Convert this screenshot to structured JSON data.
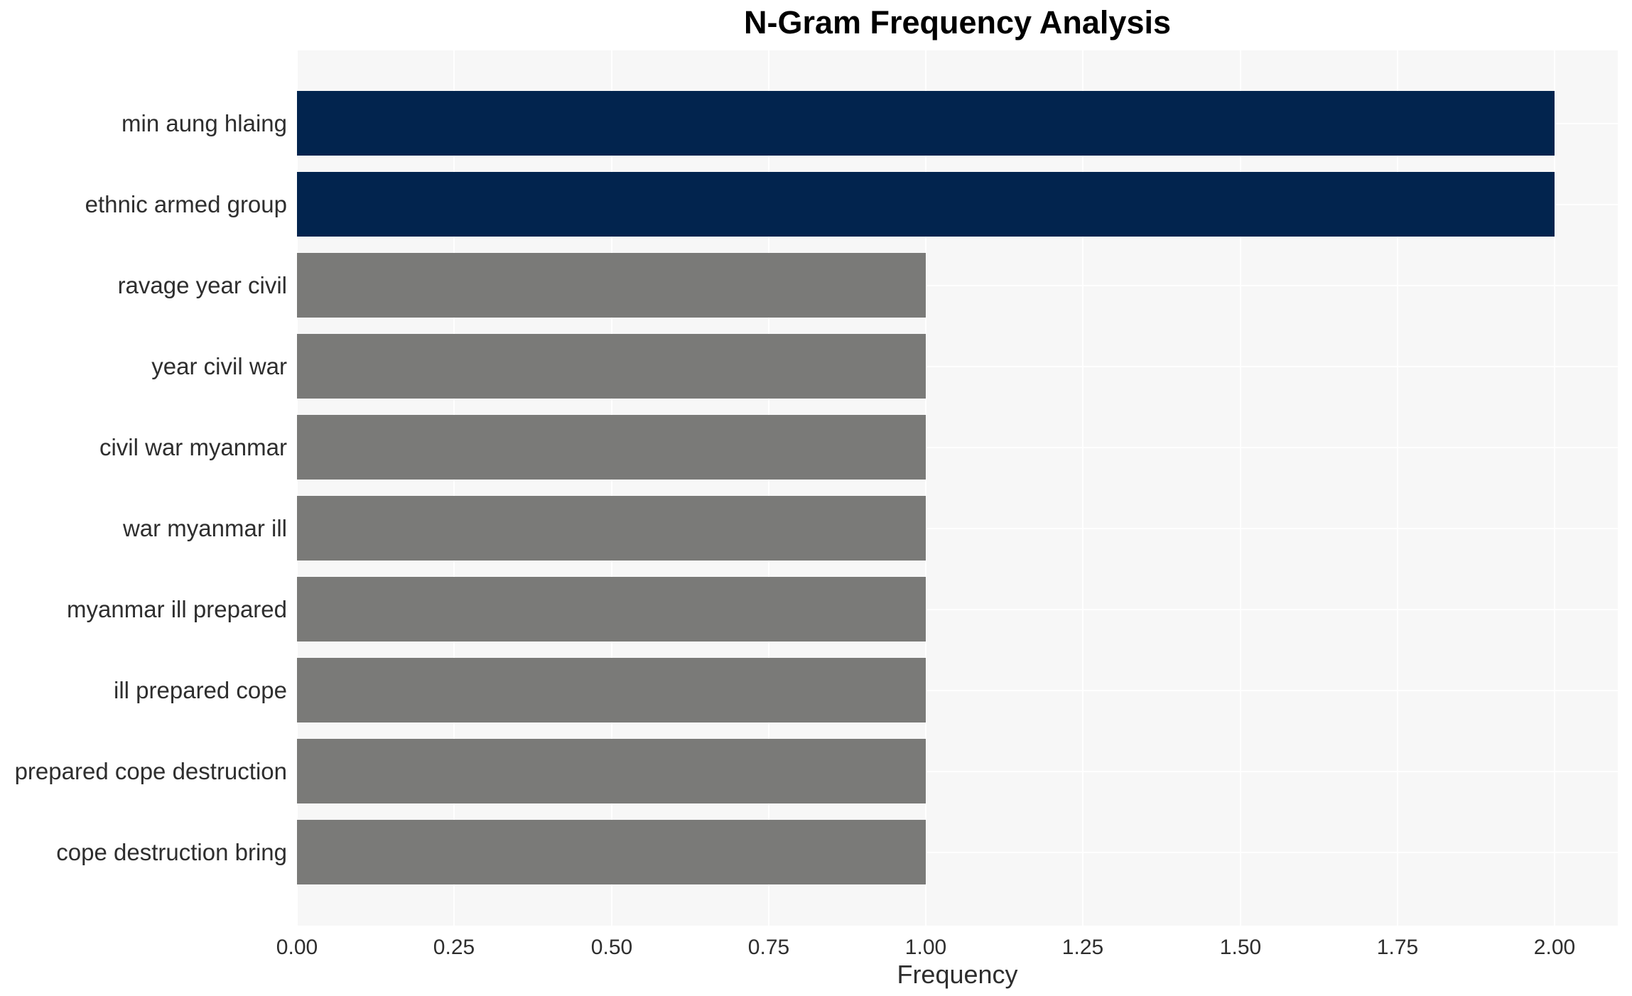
{
  "chart_data": {
    "type": "bar",
    "orientation": "horizontal",
    "title": "N-Gram Frequency Analysis",
    "xlabel": "Frequency",
    "ylabel": "",
    "categories": [
      "min aung hlaing",
      "ethnic armed group",
      "ravage year civil",
      "year civil war",
      "civil war myanmar",
      "war myanmar ill",
      "myanmar ill prepared",
      "ill prepared cope",
      "prepared cope destruction",
      "cope destruction bring"
    ],
    "values": [
      2,
      2,
      1,
      1,
      1,
      1,
      1,
      1,
      1,
      1
    ],
    "bar_colors": [
      "#02244e",
      "#02244e",
      "#7a7a78",
      "#7a7a78",
      "#7a7a78",
      "#7a7a78",
      "#7a7a78",
      "#7a7a78",
      "#7a7a78",
      "#7a7a78"
    ],
    "xlim": [
      0,
      2.101
    ],
    "xticks": [
      {
        "value": 0.0,
        "label": "0.00"
      },
      {
        "value": 0.25,
        "label": "0.25"
      },
      {
        "value": 0.5,
        "label": "0.50"
      },
      {
        "value": 0.75,
        "label": "0.75"
      },
      {
        "value": 1.0,
        "label": "1.00"
      },
      {
        "value": 1.25,
        "label": "1.25"
      },
      {
        "value": 1.5,
        "label": "1.50"
      },
      {
        "value": 1.75,
        "label": "1.75"
      },
      {
        "value": 2.0,
        "label": "2.00"
      }
    ],
    "grid": true,
    "legend": false,
    "colors": {
      "highlight_bar": "#02244e",
      "default_bar": "#7a7a78",
      "plot_background": "#f7f7f7",
      "gridline": "#ffffff",
      "title_text": "#000000",
      "axis_text": "#2e2e2e",
      "figure_background": "#ffffff"
    }
  }
}
